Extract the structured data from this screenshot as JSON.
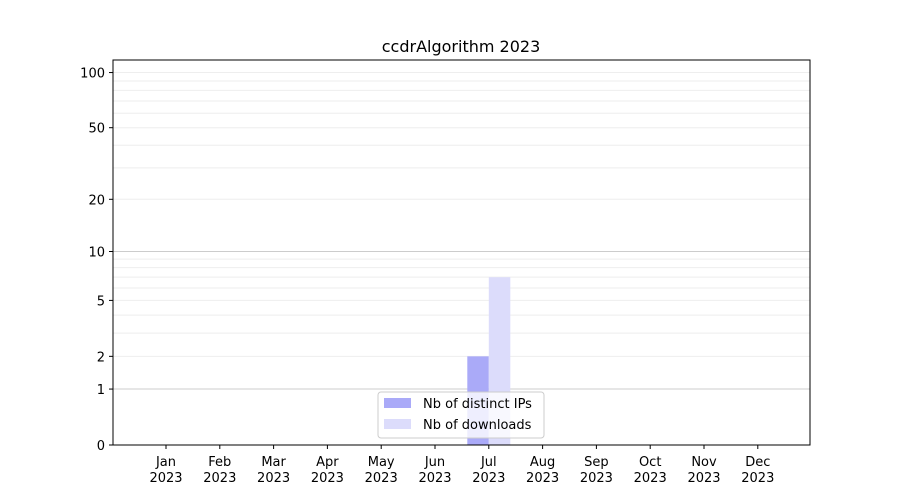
{
  "chart_data": {
    "type": "bar",
    "title": "ccdrAlgorithm 2023",
    "xlabel": "",
    "ylabel": "",
    "y_scale": "log(1+y)",
    "ylim": [
      0,
      117
    ],
    "grid": true,
    "legend_placement": "bottom-center",
    "categories": [
      "Jan\n2023",
      "Feb\n2023",
      "Mar\n2023",
      "Apr\n2023",
      "May\n2023",
      "Jun\n2023",
      "Jul\n2023",
      "Aug\n2023",
      "Sep\n2023",
      "Oct\n2023",
      "Nov\n2023",
      "Dec\n2023"
    ],
    "y_ticks": [
      0,
      1,
      2,
      5,
      10,
      20,
      50,
      100
    ],
    "series": [
      {
        "name": "Nb of distinct IPs",
        "color": "#aaaaf8",
        "values": [
          0,
          0,
          0,
          0,
          0,
          0,
          2,
          0,
          0,
          0,
          0,
          0
        ]
      },
      {
        "name": "Nb of downloads",
        "color": "#dcdcfb",
        "values": [
          0,
          0,
          0,
          0,
          0,
          0,
          7,
          0,
          0,
          0,
          0,
          0
        ]
      }
    ]
  }
}
